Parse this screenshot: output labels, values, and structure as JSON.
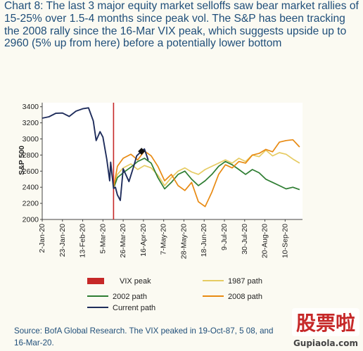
{
  "title": "Chart 8: The last 3 major equity market selloffs saw bear market rallies of 15-25% over 1.5-4 months since peak vol. The S&P has been tracking the 2008 rally since the 16-Mar VIX peak, which suggests upside up to 2960 (5% up from here) before a potentially lower bottom",
  "source": "Source: BofA Global Research. The VIX peaked in 19-Oct-87, 5 08, and 16-Mar-20.",
  "watermark": {
    "main": "股票啦",
    "url": "Gupiaola.com"
  },
  "chart_data": {
    "type": "line",
    "ylabel": "S&P 500",
    "ylim": [
      2000,
      3450
    ],
    "yticks": [
      2000,
      2200,
      2400,
      2600,
      2800,
      3000,
      3200,
      3400
    ],
    "x_start": "2-Jan-20",
    "x_end": "28-Sep-20",
    "xticks": [
      "2-Jan-20",
      "23-Jan-20",
      "13-Feb-20",
      "5-Mar-20",
      "26-Mar-20",
      "16-Apr-20",
      "7-May-20",
      "28-May-20",
      "18-Jun-20",
      "9-Jul-20",
      "30-Jul-20",
      "20-Aug-20",
      "10-Sep-20"
    ],
    "grid": false,
    "vix_peak": "16-Mar-20",
    "series": [
      {
        "name": "Current path",
        "color": "#1f2d5c",
        "x": [
          "2-Jan-20",
          "9-Jan-20",
          "16-Jan-20",
          "23-Jan-20",
          "30-Jan-20",
          "6-Feb-20",
          "13-Feb-20",
          "19-Feb-20",
          "24-Feb-20",
          "27-Feb-20",
          "2-Mar-20",
          "5-Mar-20",
          "9-Mar-20",
          "12-Mar-20",
          "13-Mar-20",
          "16-Mar-20",
          "18-Mar-20",
          "20-Mar-20",
          "23-Mar-20",
          "26-Mar-20",
          "1-Apr-20",
          "6-Apr-20",
          "9-Apr-20",
          "14-Apr-20",
          "17-Apr-20",
          "21-Apr-20"
        ],
        "values": [
          3258,
          3275,
          3318,
          3322,
          3280,
          3345,
          3375,
          3386,
          3225,
          2980,
          3090,
          3023,
          2747,
          2480,
          2711,
          2386,
          2398,
          2305,
          2237,
          2630,
          2471,
          2664,
          2790,
          2846,
          2875,
          2736
        ]
      },
      {
        "name": "1987 path",
        "color": "#e6cb63",
        "x": [
          "16-Mar-20",
          "20-Mar-20",
          "26-Mar-20",
          "3-Apr-20",
          "10-Apr-20",
          "17-Apr-20",
          "24-Apr-20",
          "1-May-20",
          "8-May-20",
          "15-May-20",
          "22-May-20",
          "29-May-20",
          "5-Jun-20",
          "12-Jun-20",
          "19-Jun-20",
          "26-Jun-20",
          "3-Jul-20",
          "10-Jul-20",
          "17-Jul-20",
          "24-Jul-20",
          "31-Jul-20",
          "7-Aug-20",
          "14-Aug-20",
          "21-Aug-20",
          "28-Aug-20",
          "4-Sep-20",
          "11-Sep-20",
          "18-Sep-20",
          "25-Sep-20"
        ],
        "values": [
          2386,
          2560,
          2640,
          2690,
          2620,
          2670,
          2640,
          2550,
          2420,
          2520,
          2600,
          2640,
          2590,
          2560,
          2620,
          2660,
          2700,
          2740,
          2700,
          2760,
          2720,
          2800,
          2780,
          2860,
          2790,
          2830,
          2810,
          2750,
          2700
        ]
      },
      {
        "name": "2002 path",
        "color": "#2e7d32",
        "x": [
          "16-Mar-20",
          "20-Mar-20",
          "26-Mar-20",
          "3-Apr-20",
          "10-Apr-20",
          "17-Apr-20",
          "24-Apr-20",
          "1-May-20",
          "8-May-20",
          "15-May-20",
          "22-May-20",
          "29-May-20",
          "5-Jun-20",
          "12-Jun-20",
          "19-Jun-20",
          "26-Jun-20",
          "3-Jul-20",
          "10-Jul-20",
          "17-Jul-20",
          "24-Jul-20",
          "31-Jul-20",
          "7-Aug-20",
          "14-Aug-20",
          "21-Aug-20",
          "28-Aug-20",
          "4-Sep-20",
          "11-Sep-20",
          "18-Sep-20",
          "25-Sep-20"
        ],
        "values": [
          2386,
          2520,
          2580,
          2650,
          2720,
          2760,
          2700,
          2520,
          2380,
          2460,
          2560,
          2600,
          2500,
          2420,
          2480,
          2560,
          2660,
          2720,
          2680,
          2620,
          2560,
          2620,
          2580,
          2500,
          2460,
          2420,
          2380,
          2400,
          2370
        ]
      },
      {
        "name": "2008 path",
        "color": "#e88a12",
        "x": [
          "16-Mar-20",
          "20-Mar-20",
          "26-Mar-20",
          "3-Apr-20",
          "10-Apr-20",
          "17-Apr-20",
          "24-Apr-20",
          "1-May-20",
          "8-May-20",
          "15-May-20",
          "22-May-20",
          "29-May-20",
          "5-Jun-20",
          "12-Jun-20",
          "19-Jun-20",
          "26-Jun-20",
          "3-Jul-20",
          "10-Jul-20",
          "17-Jul-20",
          "24-Jul-20",
          "31-Jul-20",
          "7-Aug-20",
          "14-Aug-20",
          "21-Aug-20",
          "28-Aug-20",
          "4-Sep-20",
          "11-Sep-20",
          "18-Sep-20",
          "25-Sep-20"
        ],
        "values": [
          2386,
          2660,
          2760,
          2810,
          2740,
          2850,
          2790,
          2660,
          2480,
          2560,
          2420,
          2360,
          2460,
          2220,
          2160,
          2340,
          2560,
          2680,
          2640,
          2720,
          2700,
          2800,
          2820,
          2870,
          2840,
          2960,
          2980,
          2990,
          2900
        ]
      }
    ],
    "legend": {
      "placement": "bottom",
      "entries": [
        "VIX peak",
        "1987 path",
        "2002 path",
        "2008 path",
        "Current path"
      ]
    },
    "vix_peak_color": "#c62828"
  }
}
